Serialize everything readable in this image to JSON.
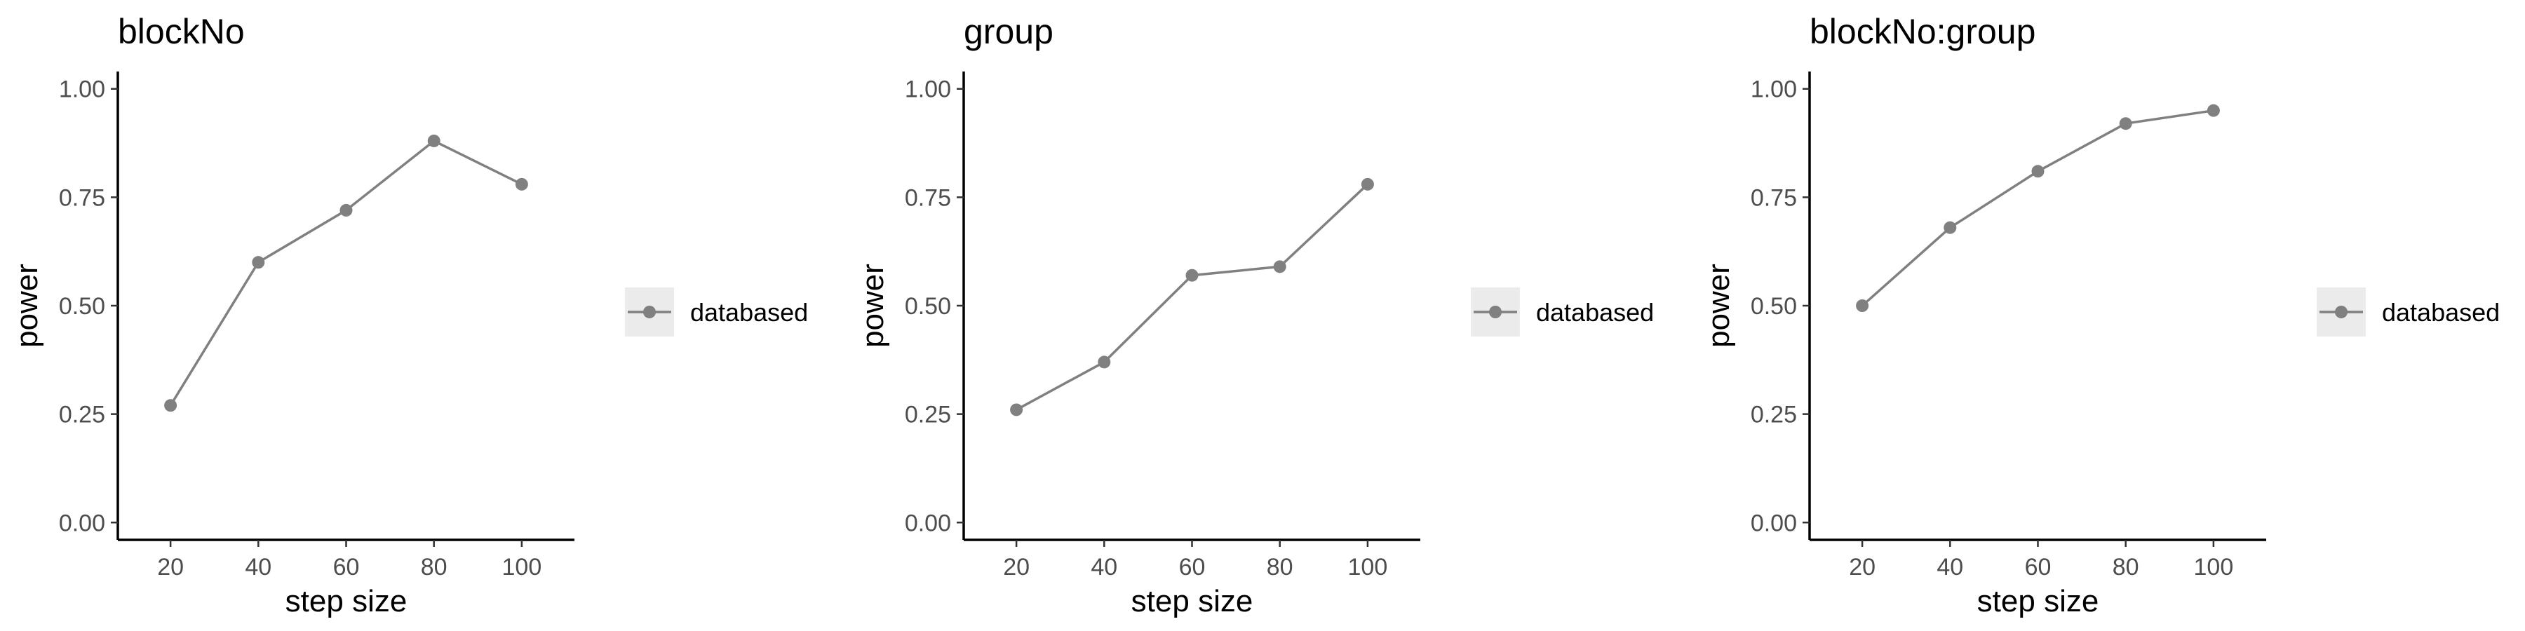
{
  "chart_data": [
    {
      "type": "line",
      "title": "blockNo",
      "xlabel": "step size",
      "ylabel": "power",
      "x": [
        20,
        40,
        60,
        80,
        100
      ],
      "xticks": [
        "20",
        "40",
        "60",
        "80",
        "100"
      ],
      "yticks": [
        "0.00",
        "0.25",
        "0.50",
        "0.75",
        "1.00"
      ],
      "xlim": [
        8,
        112
      ],
      "ylim": [
        -0.04,
        1.04
      ],
      "grid": false,
      "legend_position": "right",
      "series": [
        {
          "name": "databased",
          "values": [
            0.27,
            0.6,
            0.72,
            0.88,
            0.78
          ],
          "color": "#808080"
        }
      ]
    },
    {
      "type": "line",
      "title": "group",
      "xlabel": "step size",
      "ylabel": "power",
      "x": [
        20,
        40,
        60,
        80,
        100
      ],
      "xticks": [
        "20",
        "40",
        "60",
        "80",
        "100"
      ],
      "yticks": [
        "0.00",
        "0.25",
        "0.50",
        "0.75",
        "1.00"
      ],
      "xlim": [
        8,
        112
      ],
      "ylim": [
        -0.04,
        1.04
      ],
      "grid": false,
      "legend_position": "right",
      "series": [
        {
          "name": "databased",
          "values": [
            0.26,
            0.37,
            0.57,
            0.59,
            0.78
          ],
          "color": "#808080"
        }
      ]
    },
    {
      "type": "line",
      "title": "blockNo:group",
      "xlabel": "step size",
      "ylabel": "power",
      "x": [
        20,
        40,
        60,
        80,
        100
      ],
      "xticks": [
        "20",
        "40",
        "60",
        "80",
        "100"
      ],
      "yticks": [
        "0.00",
        "0.25",
        "0.50",
        "0.75",
        "1.00"
      ],
      "xlim": [
        8,
        112
      ],
      "ylim": [
        -0.04,
        1.04
      ],
      "grid": false,
      "legend_position": "right",
      "series": [
        {
          "name": "databased",
          "values": [
            0.5,
            0.68,
            0.81,
            0.92,
            0.95
          ],
          "color": "#808080"
        }
      ]
    }
  ]
}
